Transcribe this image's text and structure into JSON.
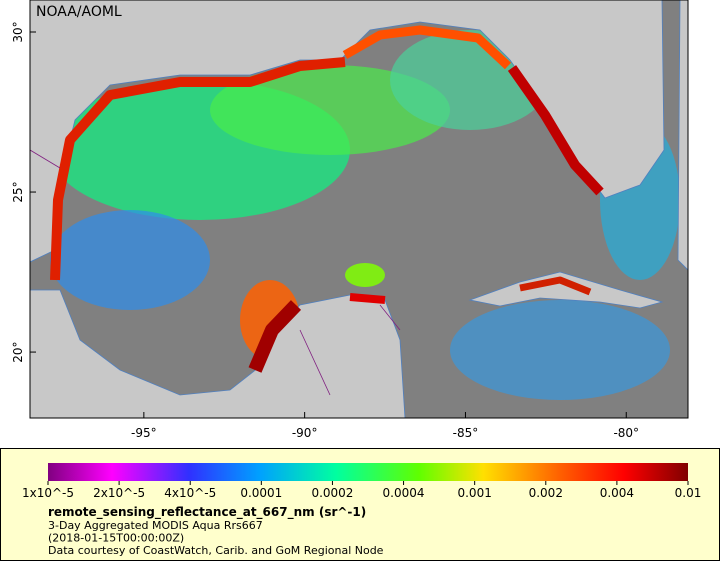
{
  "map": {
    "credit": "NOAA/AOML",
    "xlim": [
      -98.54,
      -78.08
    ],
    "ylim": [
      17.94,
      31.0
    ],
    "xticks": [
      {
        "value": -95,
        "label": "-95°"
      },
      {
        "value": -90,
        "label": "-90°"
      },
      {
        "value": -85,
        "label": "-85°"
      },
      {
        "value": -80,
        "label": "-80°"
      }
    ],
    "yticks": [
      {
        "value": 20,
        "label": "20°"
      },
      {
        "value": 25,
        "label": "25°"
      },
      {
        "value": 30,
        "label": "30°"
      }
    ]
  },
  "legend": {
    "colorbar_labels": [
      "1x10^-5",
      "2x10^-5",
      "4x10^-5",
      "0.0001",
      "0.0002",
      "0.0004",
      "0.001",
      "0.002",
      "0.004",
      "0.01"
    ],
    "variable": "remote_sensing_reflectance_at_667_nm (sr^-1)",
    "lines": [
      "3-Day Aggregated MODIS Aqua Rrs667",
      "(2018-01-15T00:00:00Z)",
      "Data courtesy of CoastWatch, Carib. and GoM Regional Node"
    ]
  }
}
